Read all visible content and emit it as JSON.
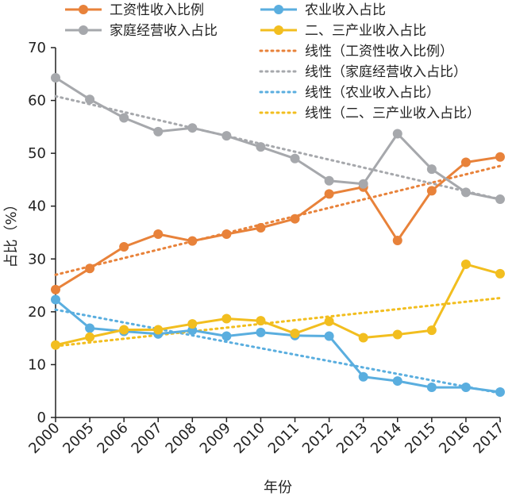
{
  "chart_data": {
    "type": "line",
    "categories": [
      "2000",
      "2005",
      "2006",
      "2007",
      "2008",
      "2009",
      "2010",
      "2011",
      "2012",
      "2013",
      "2014",
      "2015",
      "2016",
      "2017"
    ],
    "xlabel": "年份",
    "ylabel": "占比（%）",
    "ylim": [
      0,
      70
    ],
    "yticks": [
      0,
      10,
      20,
      30,
      40,
      50,
      60,
      70
    ],
    "grid": false,
    "legend_position": "top",
    "series": [
      {
        "name": "工资性收入比例",
        "color": "#E8823A",
        "values": [
          24.2,
          28.2,
          32.3,
          34.7,
          33.4,
          34.7,
          35.9,
          37.6,
          42.3,
          43.6,
          33.5,
          42.9,
          48.3,
          49.3
        ]
      },
      {
        "name": "农业收入占比",
        "color": "#5AAEDF",
        "values": [
          22.3,
          16.9,
          16.3,
          15.8,
          16.5,
          15.4,
          16.1,
          15.5,
          15.4,
          7.7,
          6.9,
          5.7,
          5.7,
          4.8
        ]
      },
      {
        "name": "家庭经营收入占比",
        "color": "#A6A8AC",
        "values": [
          64.3,
          60.2,
          56.7,
          54.1,
          54.8,
          53.3,
          51.2,
          49.0,
          44.8,
          44.2,
          53.7,
          47.0,
          42.6,
          41.3
        ]
      },
      {
        "name": "二、三产业收入占比",
        "color": "#F2BE1F",
        "values": [
          13.7,
          15.2,
          16.6,
          16.6,
          17.7,
          18.7,
          18.3,
          15.9,
          18.2,
          15.1,
          15.7,
          16.5,
          29.0,
          27.2
        ]
      }
    ],
    "trendlines": [
      {
        "name": "线性（工资性收入比例）",
        "color": "#E8823A",
        "start": 27.0,
        "end": 47.6
      },
      {
        "name": "线性（家庭经营收入占比）",
        "color": "#A6A8AC",
        "start": 60.8,
        "end": 41.3
      },
      {
        "name": "线性（农业收入占比）",
        "color": "#5AAEDF",
        "start": 20.4,
        "end": 4.6
      },
      {
        "name": "线性（二、三产业收入占比）",
        "color": "#F2BE1F",
        "start": 13.5,
        "end": 22.6
      }
    ],
    "legend": {
      "lines": [
        [
          "工资性收入比例",
          "农业收入占比"
        ],
        [
          "家庭经营收入占比",
          "二、三产业收入占比"
        ]
      ],
      "trend_labels": [
        "线性（工资性收入比例）",
        "线性（家庭经营收入占比）",
        "线性（农业收入占比）",
        "线性（二、三产业收入占比）"
      ]
    }
  }
}
